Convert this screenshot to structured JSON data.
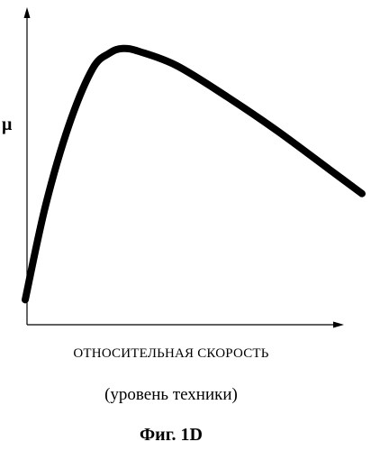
{
  "chart_data": {
    "type": "line",
    "ylabel": "μ",
    "xlabel": "ОТНОСИТЕЛЬНАЯ СКОРОСТЬ",
    "subtitle": "(уровень техники)",
    "caption": "Фиг. 1D",
    "grid": false,
    "ticks": false,
    "xlim": [
      0,
      1
    ],
    "ylim": [
      0,
      1
    ],
    "series": [
      {
        "values": [
          {
            "x": 0.0,
            "y": 0.08
          },
          {
            "x": 0.06,
            "y": 0.38
          },
          {
            "x": 0.13,
            "y": 0.64
          },
          {
            "x": 0.2,
            "y": 0.82
          },
          {
            "x": 0.25,
            "y": 0.87
          },
          {
            "x": 0.29,
            "y": 0.885
          },
          {
            "x": 0.34,
            "y": 0.875
          },
          {
            "x": 0.45,
            "y": 0.83
          },
          {
            "x": 0.6,
            "y": 0.73
          },
          {
            "x": 0.75,
            "y": 0.62
          },
          {
            "x": 0.9,
            "y": 0.5
          },
          {
            "x": 1.0,
            "y": 0.42
          }
        ]
      }
    ]
  }
}
